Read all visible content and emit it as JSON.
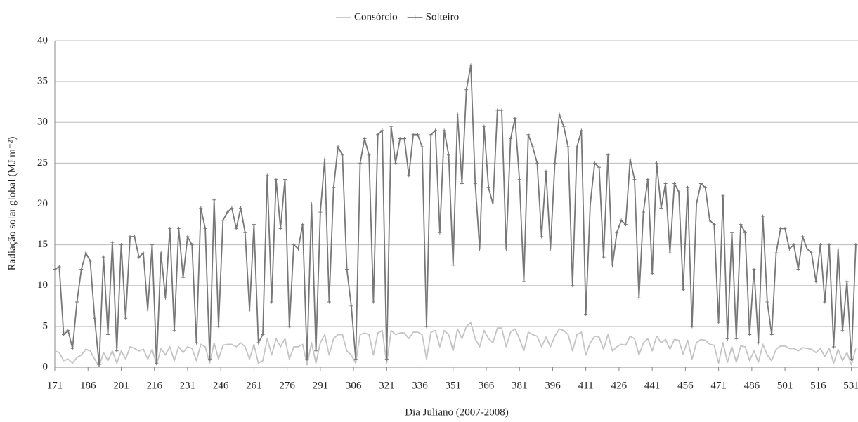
{
  "chart_data": {
    "type": "line",
    "xlabel": "Dia Juliano (2007-2008)",
    "ylabel": "Radiação solar global (MJ m⁻²)",
    "x": [
      171,
      173,
      175,
      177,
      179,
      181,
      183,
      185,
      187,
      189,
      191,
      193,
      195,
      197,
      199,
      201,
      203,
      205,
      207,
      209,
      211,
      213,
      215,
      217,
      219,
      221,
      223,
      225,
      227,
      229,
      231,
      233,
      235,
      237,
      239,
      241,
      243,
      245,
      247,
      249,
      251,
      253,
      255,
      257,
      259,
      261,
      263,
      265,
      267,
      269,
      271,
      273,
      275,
      277,
      279,
      281,
      283,
      285,
      287,
      289,
      291,
      293,
      295,
      297,
      299,
      301,
      303,
      305,
      307,
      309,
      311,
      313,
      315,
      317,
      319,
      321,
      323,
      325,
      327,
      329,
      331,
      333,
      335,
      337,
      339,
      341,
      343,
      345,
      347,
      349,
      351,
      353,
      355,
      357,
      359,
      361,
      363,
      365,
      367,
      369,
      371,
      373,
      375,
      377,
      379,
      381,
      383,
      385,
      387,
      389,
      391,
      393,
      395,
      397,
      399,
      401,
      403,
      405,
      407,
      409,
      411,
      413,
      415,
      417,
      419,
      421,
      423,
      425,
      427,
      429,
      431,
      433,
      435,
      437,
      439,
      441,
      443,
      445,
      447,
      449,
      451,
      453,
      455,
      457,
      459,
      461,
      463,
      465,
      467,
      469,
      471,
      473,
      475,
      477,
      479,
      481,
      483,
      485,
      487,
      489,
      491,
      493,
      495,
      497,
      499,
      501,
      503,
      505,
      507,
      509,
      511,
      513,
      515,
      517,
      519,
      521,
      523,
      525,
      527,
      529,
      531,
      533
    ],
    "series": [
      {
        "name": "Consórcio",
        "color": "#c4c4c4",
        "markers": false,
        "values": [
          2,
          1.8,
          0.8,
          1,
          0.5,
          1.2,
          1.5,
          2.2,
          2,
          1,
          0.1,
          1.8,
          0.8,
          2,
          0.5,
          2,
          1,
          2.5,
          2.3,
          2,
          2.2,
          1,
          2.2,
          0.3,
          2.3,
          1.5,
          2.5,
          0.8,
          2.5,
          1.8,
          2.5,
          2.3,
          0.8,
          2.8,
          2.5,
          0.5,
          3,
          1,
          2.7,
          2.8,
          2.8,
          2.5,
          3,
          2.5,
          1,
          2.8,
          0.5,
          0.8,
          3.5,
          1.5,
          3.5,
          2.5,
          3.5,
          1,
          2.5,
          2.5,
          2.8,
          0.3,
          3,
          0.5,
          3,
          4,
          1.5,
          3.5,
          4,
          4,
          2,
          1.5,
          0.5,
          4,
          4.2,
          4,
          1.5,
          4.2,
          4.5,
          0.5,
          4.5,
          4,
          4.2,
          4.2,
          3.5,
          4.3,
          4.3,
          4,
          1,
          4.3,
          4.5,
          2.5,
          4.5,
          4,
          2,
          4.7,
          3.5,
          5,
          5.5,
          3.5,
          2.5,
          4.5,
          3.5,
          3,
          4.8,
          4.8,
          2.5,
          4.3,
          4.7,
          3.5,
          2,
          4.3,
          4,
          3.8,
          2.5,
          3.7,
          2.5,
          3.8,
          4.7,
          4.5,
          4,
          2,
          4,
          4.3,
          1.5,
          3,
          3.8,
          3.7,
          2.2,
          4,
          2,
          2.5,
          2.8,
          2.7,
          3.8,
          3.5,
          1.5,
          3,
          3.5,
          2,
          3.8,
          3,
          3.4,
          2.2,
          3.4,
          3.3,
          1.6,
          3.3,
          1,
          3,
          3.4,
          3.3,
          2.8,
          2.7,
          0.5,
          3,
          0.6,
          2.5,
          0.6,
          2.6,
          2.5,
          0.8,
          2,
          0.6,
          2.8,
          1.5,
          0.8,
          2.2,
          2.6,
          2.6,
          2.3,
          2.3,
          2,
          2.4,
          2.3,
          2.2,
          1.8,
          2.3,
          1.3,
          2.3,
          0.5,
          2.2,
          0.8,
          1.8,
          0.3,
          2.3
        ]
      },
      {
        "name": "Solteiro",
        "color": "#777777",
        "markers": true,
        "values": [
          12,
          12.3,
          4,
          4.5,
          2.3,
          8,
          12,
          14,
          13,
          6,
          0.3,
          13.5,
          4,
          15.3,
          2,
          15,
          6,
          16,
          16,
          13.5,
          14,
          7,
          15,
          0.5,
          14,
          8.5,
          17,
          4.5,
          17,
          11,
          16,
          15,
          3,
          19.5,
          17,
          1,
          20.5,
          5,
          18,
          19,
          19.5,
          17,
          19.5,
          16.5,
          7,
          17.5,
          3,
          4,
          23.5,
          8,
          23,
          17,
          23,
          5,
          15,
          14.5,
          17.5,
          1,
          20,
          2,
          19,
          25.5,
          8,
          22,
          27,
          26,
          12,
          7.5,
          1,
          25,
          28,
          26,
          8,
          28.5,
          29,
          1,
          29.5,
          25,
          28,
          28,
          23.5,
          28.5,
          28.5,
          27,
          5,
          28.5,
          29,
          16.5,
          29,
          26,
          12.5,
          31,
          22.5,
          34,
          37,
          22.5,
          14.5,
          29.5,
          22,
          20,
          31.5,
          31.5,
          14.5,
          28,
          30.5,
          23,
          10.5,
          28.5,
          27,
          25,
          16,
          24,
          14.5,
          25,
          31,
          29.5,
          27,
          10,
          27,
          29,
          6.5,
          20,
          25,
          24.5,
          13.5,
          26,
          12.5,
          16.5,
          18,
          17.5,
          25.5,
          23,
          8.5,
          19,
          23,
          11.5,
          25,
          19.5,
          22.5,
          14,
          22.5,
          21.5,
          9.5,
          22,
          5,
          20,
          22.5,
          22,
          18,
          17.5,
          5.5,
          21,
          3.5,
          16.5,
          3.5,
          17.5,
          16.5,
          4,
          12,
          3,
          18.5,
          8,
          4,
          14,
          17,
          17,
          14.5,
          15,
          12,
          16,
          14.5,
          14,
          10.5,
          15,
          8,
          15,
          2.5,
          14.5,
          4.5,
          10.5,
          1,
          15
        ]
      }
    ],
    "xlim": [
      171,
      534
    ],
    "xticks": [
      171,
      186,
      201,
      216,
      231,
      246,
      261,
      276,
      291,
      306,
      321,
      336,
      351,
      366,
      381,
      396,
      411,
      426,
      441,
      456,
      471,
      486,
      501,
      516,
      531
    ],
    "ylim": [
      0,
      40
    ],
    "yticks": [
      0,
      5,
      10,
      15,
      20,
      25,
      30,
      35,
      40
    ],
    "grid": true,
    "legend": "top"
  }
}
